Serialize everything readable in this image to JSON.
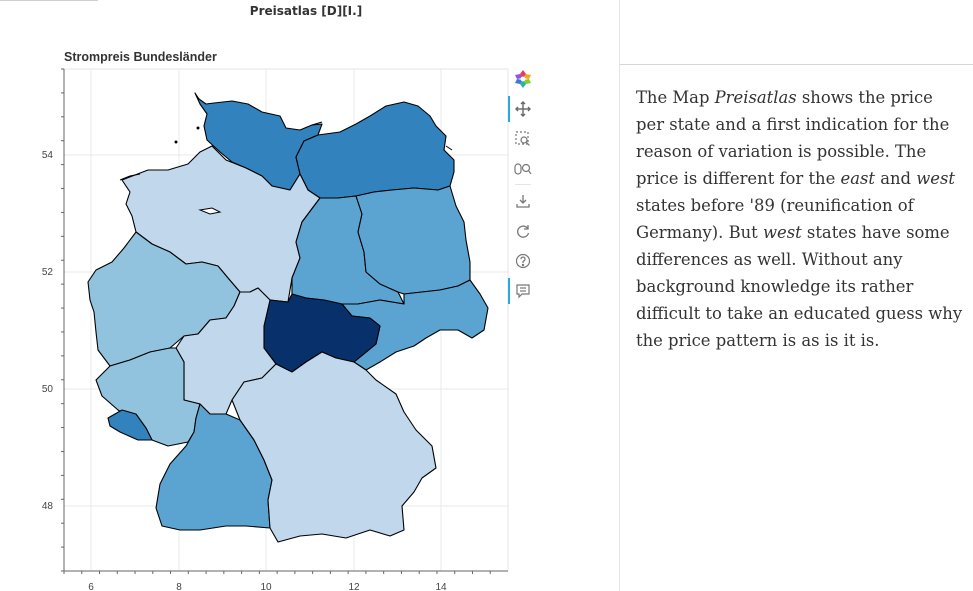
{
  "page": {
    "title": "Preisatlas [D][I.]"
  },
  "map": {
    "title": "Strompreis Bundesländer",
    "x_ticks": [
      "6",
      "8",
      "10",
      "12",
      "14"
    ],
    "y_ticks": [
      "48",
      "50",
      "52",
      "54"
    ],
    "x_range": [
      5.4,
      15.4
    ],
    "y_range": [
      47.0,
      55.4
    ],
    "colors": {
      "darkest": "#08306b",
      "dark": "#3182bd",
      "mid": "#5ba3d0",
      "light": "#91c3de",
      "lightest": "#c0d7ec"
    },
    "states": [
      {
        "id": "schleswig-holstein",
        "shade": "dark"
      },
      {
        "id": "mecklenburg-vorpommern",
        "shade": "dark"
      },
      {
        "id": "niedersachsen",
        "shade": "lightest"
      },
      {
        "id": "sachsen-anhalt",
        "shade": "mid"
      },
      {
        "id": "brandenburg",
        "shade": "mid"
      },
      {
        "id": "sachsen",
        "shade": "mid"
      },
      {
        "id": "thueringen",
        "shade": "darkest"
      },
      {
        "id": "nordrhein-westfalen",
        "shade": "light"
      },
      {
        "id": "hessen",
        "shade": "lightest"
      },
      {
        "id": "rheinland-pfalz",
        "shade": "light"
      },
      {
        "id": "saarland",
        "shade": "dark"
      },
      {
        "id": "baden-wuerttemberg",
        "shade": "mid"
      },
      {
        "id": "bayern",
        "shade": "lightest"
      }
    ]
  },
  "toolbar": {
    "tools": [
      {
        "name": "bokeh-logo-icon"
      },
      {
        "name": "pan-tool-icon"
      },
      {
        "name": "box-zoom-tool-icon"
      },
      {
        "name": "wheel-zoom-tool-icon"
      },
      {
        "name": "save-tool-icon"
      },
      {
        "name": "reset-tool-icon"
      },
      {
        "name": "help-tool-icon"
      },
      {
        "name": "hover-tool-icon"
      }
    ]
  },
  "description": {
    "part1": "The Map ",
    "em1": "Preisatlas",
    "part2": " shows the price per state and a first indication for the reason of variation is possible. The price is different for the ",
    "em2": "east",
    "part3": " and ",
    "em3": "west",
    "part4": " states before '89 (reunification of Germany). But ",
    "em4": "west",
    "part5": " states have some differences as well. Without any background knowledge its rather difficult to take an educated guess why the price pattern is as is it is."
  }
}
